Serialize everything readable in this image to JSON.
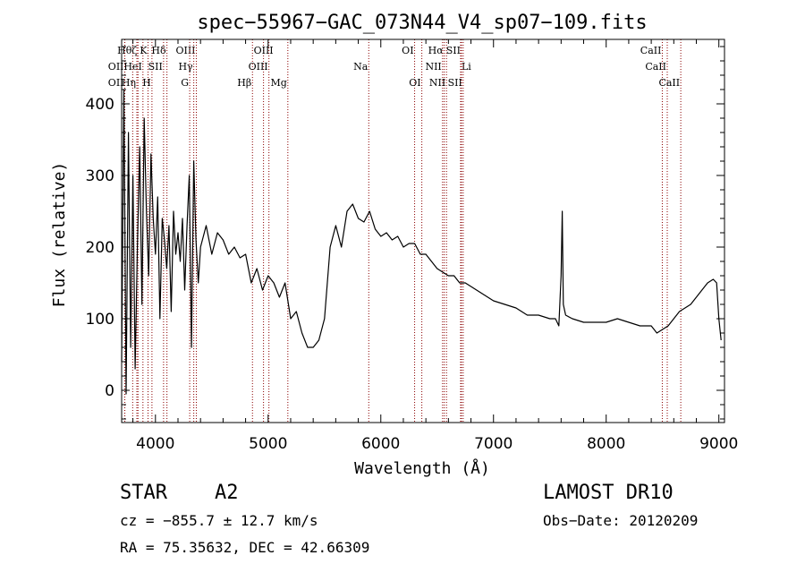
{
  "chart_data": {
    "type": "line",
    "title": "spec−55967−GAC_073N44_V4_sp07−109.fits",
    "xlabel": "Wavelength (Å)",
    "ylabel": "Flux (relative)",
    "xlim": [
      3700,
      9050
    ],
    "ylim": [
      -45,
      490
    ],
    "xticks": [
      4000,
      5000,
      6000,
      7000,
      8000,
      9000
    ],
    "yticks": [
      0,
      100,
      200,
      300,
      400
    ],
    "grid": false,
    "line_color": "#000000",
    "marker_color": "#8b0000",
    "series": [
      {
        "x": [
          3700,
          3720,
          3740,
          3760,
          3780,
          3800,
          3820,
          3840,
          3860,
          3880,
          3900,
          3920,
          3940,
          3960,
          3980,
          4000,
          4020,
          4040,
          4060,
          4080,
          4100,
          4120,
          4140,
          4160,
          4180,
          4200,
          4220,
          4240,
          4260,
          4280,
          4300,
          4320,
          4340,
          4360,
          4380,
          4400,
          4450,
          4500,
          4550,
          4600,
          4650,
          4700,
          4750,
          4800,
          4850,
          4900,
          4950,
          5000,
          5050,
          5100,
          5150,
          5200,
          5250,
          5300,
          5350,
          5400,
          5450,
          5500,
          5550,
          5600,
          5650,
          5700,
          5750,
          5800,
          5850,
          5900,
          5950,
          6000,
          6050,
          6100,
          6150,
          6200,
          6250,
          6300,
          6350,
          6400,
          6450,
          6500,
          6550,
          6600,
          6650,
          6700,
          6750,
          6800,
          6900,
          7000,
          7100,
          7200,
          7300,
          7400,
          7500,
          7550,
          7580,
          7600,
          7610,
          7620,
          7640,
          7700,
          7800,
          7900,
          8000,
          8100,
          8200,
          8300,
          8400,
          8450,
          8500,
          8550,
          8600,
          8650,
          8700,
          8750,
          8800,
          8850,
          8900,
          8950,
          8980,
          9000,
          9020
        ],
        "values": [
          40,
          420,
          -5,
          360,
          60,
          300,
          30,
          200,
          340,
          120,
          380,
          250,
          160,
          330,
          240,
          190,
          270,
          100,
          240,
          210,
          170,
          230,
          110,
          250,
          190,
          220,
          180,
          240,
          140,
          230,
          300,
          60,
          320,
          210,
          150,
          200,
          230,
          190,
          220,
          210,
          190,
          200,
          185,
          190,
          150,
          170,
          140,
          160,
          150,
          130,
          150,
          100,
          110,
          80,
          60,
          60,
          70,
          100,
          200,
          230,
          200,
          250,
          260,
          240,
          235,
          250,
          225,
          215,
          220,
          210,
          215,
          200,
          205,
          205,
          190,
          190,
          180,
          170,
          165,
          160,
          160,
          150,
          150,
          145,
          135,
          125,
          120,
          115,
          105,
          105,
          100,
          100,
          90,
          160,
          250,
          120,
          105,
          100,
          95,
          95,
          95,
          100,
          95,
          90,
          90,
          80,
          85,
          90,
          100,
          110,
          115,
          120,
          130,
          140,
          150,
          155,
          150,
          100,
          70
        ]
      }
    ],
    "line_markers": [
      {
        "label": "Hθ",
        "x": 3798,
        "row": 1,
        "side": "left"
      },
      {
        "label": "OII",
        "x": 3728,
        "row": 2,
        "side": "left"
      },
      {
        "label": "OII",
        "x": 3728,
        "row": 3,
        "side": "left"
      },
      {
        "label": "ζ",
        "x": 3845,
        "row": 1,
        "side": "left"
      },
      {
        "label": "HeI",
        "x": 3889,
        "row": 2,
        "side": "left"
      },
      {
        "label": "Hη",
        "x": 3835,
        "row": 3,
        "side": "left"
      },
      {
        "label": "K",
        "x": 3934,
        "row": 1,
        "side": "left"
      },
      {
        "label": "H",
        "x": 3969,
        "row": 3,
        "side": "left"
      },
      {
        "label": "SII",
        "x": 4072,
        "row": 2,
        "side": "left"
      },
      {
        "label": "Hδ",
        "x": 4102,
        "row": 1,
        "side": "left"
      },
      {
        "label": "OIII",
        "x": 4363,
        "row": 1,
        "side": "left"
      },
      {
        "label": "Hγ",
        "x": 4340,
        "row": 2,
        "side": "left"
      },
      {
        "label": "G",
        "x": 4304,
        "row": 3,
        "side": "left"
      },
      {
        "label": "Hβ",
        "x": 4861,
        "row": 3,
        "side": "left"
      },
      {
        "label": "OIII",
        "x": 4959,
        "row": 1,
        "side": "center"
      },
      {
        "label": "OIII",
        "x": 5007,
        "row": 2,
        "side": "left"
      },
      {
        "label": "Mg",
        "x": 5175,
        "row": 3,
        "side": "left"
      },
      {
        "label": "Na",
        "x": 5893,
        "row": 2,
        "side": "left"
      },
      {
        "label": "OI",
        "x": 6300,
        "row": 1,
        "side": "left"
      },
      {
        "label": "OI",
        "x": 6364,
        "row": 3,
        "side": "left"
      },
      {
        "label": "Hα",
        "x": 6563,
        "row": 1,
        "side": "left"
      },
      {
        "label": "NII",
        "x": 6548,
        "row": 2,
        "side": "left"
      },
      {
        "label": "NII",
        "x": 6583,
        "row": 3,
        "side": "left"
      },
      {
        "label": "SII",
        "x": 6716,
        "row": 1,
        "side": "left"
      },
      {
        "label": "Li",
        "x": 6708,
        "row": 2,
        "side": "right"
      },
      {
        "label": "SII",
        "x": 6731,
        "row": 3,
        "side": "left"
      },
      {
        "label": "CaII",
        "x": 8498,
        "row": 1,
        "side": "left"
      },
      {
        "label": "CaII",
        "x": 8542,
        "row": 2,
        "side": "left"
      },
      {
        "label": "CaII",
        "x": 8662,
        "row": 3,
        "side": "left"
      }
    ]
  },
  "info": {
    "class_label": "STAR",
    "subclass": "A2",
    "survey": "LAMOST DR10",
    "redshift": "cz = −855.7 ± 12.7 km/s",
    "obs_date": "Obs−Date: 20120209",
    "coords": "RA =  75.35632, DEC =  42.66309"
  }
}
